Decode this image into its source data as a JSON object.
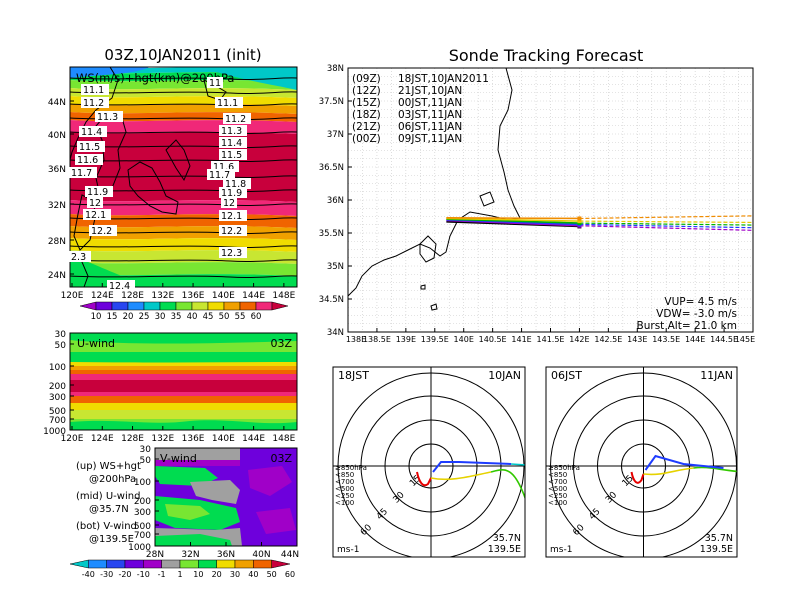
{
  "colors": {
    "ws_scale": [
      "#a000c8",
      "#6e00dc",
      "#2846f0",
      "#1e8cff",
      "#00c8c8",
      "#00dc50",
      "#78e632",
      "#c8e632",
      "#f0dc00",
      "#f0a000",
      "#f06400",
      "#f02878",
      "#c8003c"
    ],
    "vwind_scale": [
      "#00c8c8",
      "#1e8cff",
      "#2846f0",
      "#6e00dc",
      "#a000c8",
      "#a0a0a0",
      "#78e632",
      "#00dc50",
      "#f0dc00",
      "#f0a000",
      "#f06400",
      "#c8003c"
    ],
    "track_times": [
      "#000000",
      "#a000c8",
      "#1e3cff",
      "#00b400",
      "#e6c800",
      "#f08c00"
    ]
  },
  "top_left": {
    "title": "03Z,10JAN2011 (init)",
    "label": "WS(m/s)+hgt(km)@200hPa",
    "y_ticks": [
      "44N",
      "40N",
      "36N",
      "32N",
      "28N",
      "24N"
    ],
    "x_ticks": [
      "120E",
      "124E",
      "128E",
      "132E",
      "136E",
      "140E",
      "144E",
      "148E"
    ],
    "hgt_labels": [
      "11",
      "11.1",
      "11.2",
      "11.3",
      "11.4",
      "11.5",
      "11.6",
      "11.7",
      "11.8",
      "11.9",
      "12",
      "12.1",
      "12.2",
      "12.3",
      "12.4",
      "2.3"
    ],
    "colorbar_labels": [
      "10",
      "15",
      "20",
      "25",
      "30",
      "35",
      "40",
      "45",
      "50",
      "55",
      "60"
    ]
  },
  "mid_left": {
    "label": "U-wind",
    "time": "03Z",
    "y_ticks": [
      "30",
      "50",
      "100",
      "200",
      "300",
      "500",
      "700",
      "1000"
    ],
    "x_ticks": [
      "120E",
      "124E",
      "128E",
      "132E",
      "136E",
      "140E",
      "144E",
      "148E"
    ]
  },
  "bot_left": {
    "label": "V-wind",
    "time": "03Z",
    "y_ticks": [
      "30",
      "50",
      "100",
      "200",
      "300",
      "500",
      "700",
      "1000"
    ],
    "x_ticks": [
      "28N",
      "32N",
      "36N",
      "40N",
      "44N"
    ],
    "colorbar_labels": [
      "-40",
      "-30",
      "-20",
      "-10",
      "-1",
      "1",
      "10",
      "20",
      "30",
      "40",
      "50",
      "60"
    ]
  },
  "legend_left": {
    "lines": [
      "(up) WS+hgt",
      "@200hPa",
      "(mid) U-wind",
      "@35.7N",
      "(bot) V-wind",
      "@139.5E"
    ]
  },
  "track": {
    "title": "Sonde Tracking Forecast",
    "y_ticks": [
      "38N",
      "37.5N",
      "37N",
      "36.5N",
      "36N",
      "35.5N",
      "35N",
      "34.5N",
      "34N"
    ],
    "x_ticks": [
      "138E",
      "138.5E",
      "139E",
      "139.5E",
      "140E",
      "140.5E",
      "141E",
      "141.5E",
      "142E",
      "142.5E",
      "143E",
      "143.5E",
      "144E",
      "144.5E",
      "145E"
    ],
    "legend": [
      {
        "z": "(09Z)",
        "jst": "18JST,10JAN2011"
      },
      {
        "z": "(12Z)",
        "jst": "21JST,10JAN"
      },
      {
        "z": "(15Z)",
        "jst": "00JST,11JAN"
      },
      {
        "z": "(18Z)",
        "jst": "03JST,11JAN"
      },
      {
        "z": "(21Z)",
        "jst": "06JST,11JAN"
      },
      {
        "z": "(00Z)",
        "jst": "09JST,11JAN"
      }
    ],
    "vup": "VUP= 4.5 m/s",
    "vdw": "VDW= -3.0 m/s",
    "burst": "Burst Alt= 21.0 km"
  },
  "hodo_left": {
    "time": "18JST",
    "date": "10JAN",
    "rings": [
      "15",
      "30",
      "45",
      "60"
    ],
    "levels": [
      "≥850hPa",
      "<850",
      "<700",
      "<500",
      "<250",
      "<100"
    ],
    "unit": "ms-1",
    "lat": "35.7N",
    "lon": "139.5E"
  },
  "hodo_right": {
    "time": "06JST",
    "date": "11JAN",
    "rings": [
      "15",
      "30",
      "45",
      "60"
    ],
    "levels": [
      "≥850hPa",
      "<850",
      "<700",
      "<500",
      "<250",
      "<100"
    ],
    "unit": "ms-1",
    "lat": "35.7N",
    "lon": "139.5E"
  },
  "chart_data": [
    {
      "type": "heatmap",
      "title": "03Z,10JAN2011 (init)",
      "subtitle": "WS(m/s)+hgt(km)@200hPa",
      "xlim": [
        120,
        150
      ],
      "ylim": [
        22,
        48
      ]
    },
    {
      "type": "heatmap",
      "title": "U-wind",
      "xlim": [
        120,
        150
      ],
      "ylim": [
        1000,
        30
      ]
    },
    {
      "type": "heatmap",
      "title": "V-wind",
      "xlim": [
        28,
        44
      ],
      "ylim": [
        1000,
        30
      ]
    },
    {
      "type": "line",
      "title": "Sonde Tracking Forecast",
      "xlim": [
        138,
        145
      ],
      "ylim": [
        34,
        38
      ],
      "series": [
        {
          "name": "(09Z)",
          "x": [
            139.7,
            142.0
          ],
          "y": [
            35.67,
            35.6
          ]
        },
        {
          "name": "(12Z)",
          "x": [
            139.7,
            142.0,
            145.0
          ],
          "y": [
            35.69,
            35.61,
            35.54
          ]
        },
        {
          "name": "(15Z)",
          "x": [
            139.7,
            142.0,
            145.0
          ],
          "y": [
            35.7,
            35.63,
            35.58
          ]
        },
        {
          "name": "(18Z)",
          "x": [
            139.7,
            142.0,
            145.0
          ],
          "y": [
            35.71,
            35.65,
            35.62
          ]
        },
        {
          "name": "(21Z)",
          "x": [
            139.7,
            142.0,
            145.0
          ],
          "y": [
            35.72,
            35.68,
            35.66
          ]
        },
        {
          "name": "(00Z)",
          "x": [
            139.7,
            142.0,
            145.0
          ],
          "y": [
            35.73,
            35.72,
            35.76
          ]
        }
      ]
    }
  ]
}
